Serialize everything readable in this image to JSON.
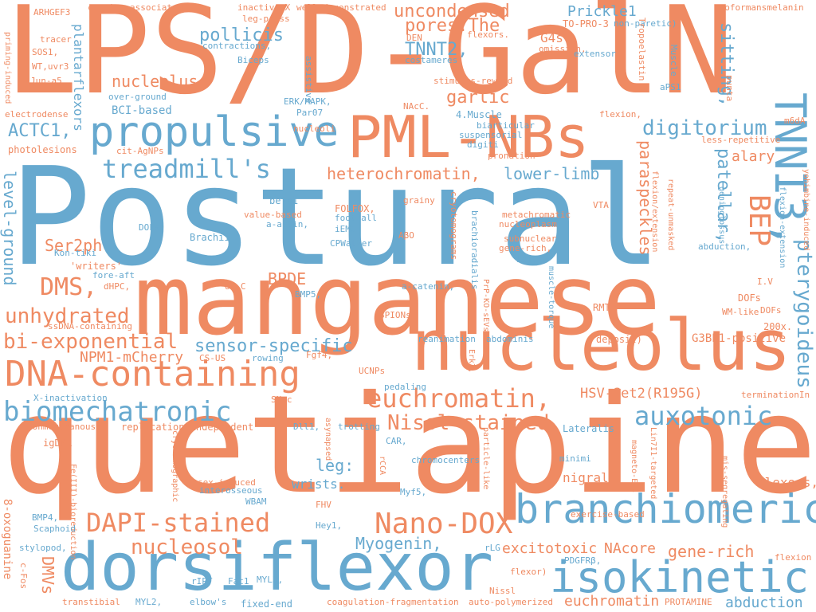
{
  "colors": {
    "orange": "#ef8a62",
    "blue": "#67a9cf",
    "background": "#ffffff"
  },
  "words": {
    "w1": "LPS/D-GalN",
    "w2": "Postural",
    "w3": "quetiapine",
    "w4": "manganese",
    "w5": "nucleolus",
    "w6": "PML-NBs",
    "w7": "dorsiflexor",
    "w8": "TNNI3,",
    "w9": "propulsive",
    "w10": "DNA-containing",
    "w11": "branchiomeric",
    "w12": "isokinetic",
    "w13": "biomechatronic",
    "w14": "treadmill's",
    "w15": "auxotonic",
    "w16": "euchromatin,",
    "w17": "Nano-DOX",
    "w18": "DAPI-stained",
    "w19": "bi-exponential",
    "w20": "nucleosol",
    "w21": "DMS,",
    "w22": "unhydrated",
    "w23": "Nissl-stained",
    "w24": "heterochromatin,",
    "w25": "digitorium",
    "w26": "BEP",
    "w27": "pterygoideus",
    "w28": "uncondensed",
    "w29": "pores.The",
    "w30": "TNNT2,",
    "w31": "pollicis",
    "w32": "garlic",
    "w33": "sensor-specific",
    "w34": "lower-limb",
    "w35": "patellar,",
    "w36": "sitting,",
    "w37": "ACTC1,",
    "w38": "Ser2ph",
    "w39": "BPDE",
    "w40": "NPM1-mCherry",
    "w41": "Myogenin,",
    "w42": "gene-rich",
    "w43": "excitotoxic",
    "w44": "NAcore",
    "w45": "euchromatin",
    "w46": "leg:",
    "w47": "HSV-Set2(R195G)",
    "w48": "nucleolus,",
    "w49": "paraspeckles",
    "w50": "level-ground",
    "w51": "Prickle1",
    "w52": "alary",
    "w53": "DMVs",
    "w54": "nigral",
    "w55": "G4s",
    "w56": "plantarflexors",
    "w57": "wrists.",
    "w58": "flexors,",
    "w59": "G3BP1-positive",
    "w60": "abduction",
    "w61": "Lateralis",
    "w62": "FOLFOX,",
    "w63": "RMTg",
    "w64": "DOFs",
    "w65": "200x.",
    "w66": "BCI-based",
    "w67": "beta1",
    "w68": "Brachii",
    "w69": "ARHGEF3",
    "w70": "SOS1,",
    "w71": "WT,uvr3",
    "w72": "Jun-a5",
    "w73": "tracer",
    "w74": "priming-induced",
    "w75": "electrodense",
    "w76": "photolesions",
    "w77": "cocaine-associated",
    "w78": "inactive-X",
    "w79": "well-demonstrated",
    "w80": "leg-press",
    "w81": "contractions,",
    "w82": "Biceps",
    "w83": "assistive",
    "w84": "over-ground",
    "w85": "ERK/MAPK,",
    "w86": "Par07",
    "w87": "nucleoli",
    "w88": "cit-AgNPs",
    "w89": "4.Muscle",
    "w90": "biarticular",
    "w91": "suspensorial",
    "w92": "digiti",
    "w93": "pronation",
    "w94": "NAcC.",
    "w95": "stimulus-reward",
    "w96": "costameres",
    "w97": "DEN",
    "w98": "flexors.",
    "w99": "omission,",
    "w100": "TO-PRO-3",
    "w101": "non-paretic)",
    "w102": "extensor",
    "w103": "neoformansmelanin",
    "w104": "Tropoelastin",
    "w105": "Muscle",
    "w106": "aPS1",
    "w107": "punta",
    "w108": "flexion,",
    "w109": "m6dA",
    "w110": "less-repetitive",
    "w111": "Kon-tiki",
    "w112": "DOFs,",
    "w113": "value-based",
    "w114": "a-actin,",
    "w115": "iEMG",
    "w116": "footfall",
    "w117": "CPWalker",
    "w118": "grainy",
    "w119": "AβO",
    "w120": "cryotomograms",
    "w121": "brachioradialis",
    "w122": "metachromatic",
    "w123": "nucleoplasm",
    "w124": "VTA",
    "w125": "flexion/extension",
    "w126": "repeat-unmasked",
    "w127": "genioglossus",
    "w128": "flexion-extension",
    "w129": "yohimbine-induced",
    "w130": "subnuclear",
    "w131": "gene-rich,",
    "w132": "LAT,",
    "w133": "abduction,",
    "w134": "'writers'",
    "w135": "fore-aft",
    "w136": "dHPC,",
    "w137": "UV-C",
    "w138": "BMP5,",
    "w139": "a-catenin,",
    "w140": "PrP-KO-sEVs",
    "w141": "muscle-torque",
    "w142": "I.V",
    "w143": "WM-like",
    "w144": "DOFs",
    "w145": "ssDNA-containing",
    "w146": "SPIONs",
    "w147": "reanimation",
    "w148": "abdominis",
    "w149": "deposit)",
    "w150": "CS-US",
    "w151": "rowing",
    "w152": "Fgf4,",
    "w153": "Erk2,",
    "w154": "UCNPs",
    "w155": "terminationIn",
    "w156": "X-inactivation",
    "w157": "SNpc",
    "w158": "pedaling",
    "w159": "nonmembranous",
    "w160": "replication-independent",
    "w161": "Dll1,",
    "w162": "asynapsed",
    "w163": "trotting",
    "w164": "CAR,",
    "w165": "igDMR",
    "w166": "cryotomographic",
    "w167": "rCCA",
    "w168": "chromocenters",
    "w169": "particle-like",
    "w170": "minimi",
    "w171": "magneto-EVs",
    "w172": "Lin7I1-targeted",
    "w173": "mis-segregating",
    "w174": "sex-induced",
    "w175": "interosseous",
    "w176": "WBAM",
    "w177": "Myf5,",
    "w178": "exercise-based",
    "w179": "8-oxoguanine",
    "w180": "Fe(III)-bioreduction",
    "w181": "BMP4,",
    "w182": "Scaphoid",
    "w183": "FHV",
    "w184": "Hey1,",
    "w185": "stylopod,",
    "w186": "c-Fos",
    "w187": "rLG",
    "w188": "PDGFRβ,",
    "w189": "flexion",
    "w190": "rIPT",
    "w191": "Fat1",
    "w192": "MYL3,",
    "w193": "flexor)",
    "w194": "Nissl",
    "w195": "transtibial",
    "w196": "MYL2,",
    "w197": "elbow's",
    "w198": "fixed-end",
    "w199": "coagulation-fragmentation",
    "w200": "auto-polymerized",
    "w201": "PROTAMINE"
  }
}
